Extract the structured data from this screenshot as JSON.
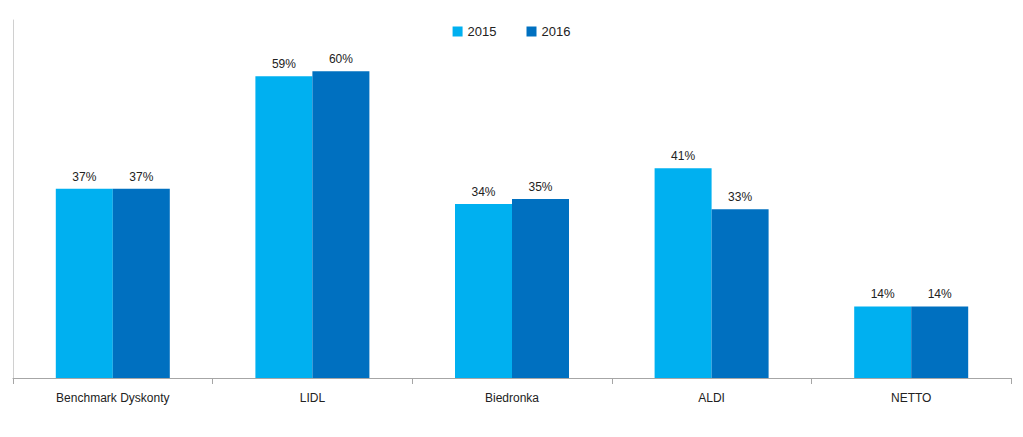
{
  "chart_data": {
    "type": "bar",
    "categories": [
      "Benchmark Dyskonty",
      "LIDL",
      "Biedronka",
      "ALDI",
      "NETTO"
    ],
    "series": [
      {
        "name": "2015",
        "color": "#00b0f0",
        "values": [
          37,
          59,
          34,
          41,
          14
        ],
        "value_labels": [
          "37%",
          "59%",
          "34%",
          "41%",
          "14%"
        ]
      },
      {
        "name": "2016",
        "color": "#0070c0",
        "values": [
          37,
          60,
          35,
          33,
          14
        ],
        "value_labels": [
          "37%",
          "60%",
          "35%",
          "33%",
          "14%"
        ]
      }
    ],
    "ylim": [
      0,
      70
    ],
    "grid": false,
    "legend": "top",
    "data_labels": true,
    "tick_labels": "x"
  }
}
